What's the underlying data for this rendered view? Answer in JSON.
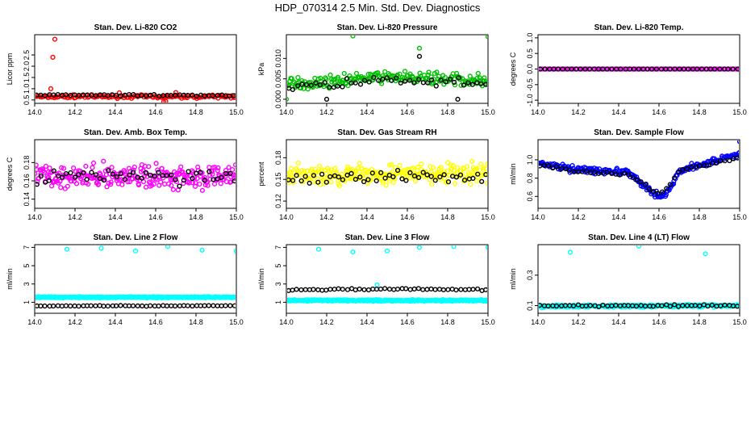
{
  "figure_title": "HDP_070314  2.5 Min. Std. Dev. Diagnostics",
  "chart_data": [
    {
      "type": "scatter",
      "title": "Stan. Dev. Li-820 CO2",
      "ylabel": "Licor ppm",
      "xlim": [
        14.0,
        15.0
      ],
      "ylim": [
        0.35,
        3.4
      ],
      "x_ticks": [
        "14.0",
        "14.2",
        "14.4",
        "14.6",
        "14.8",
        "15.0"
      ],
      "y_ticks": [
        {
          "v": 0.5,
          "label": "0.5"
        },
        {
          "v": 1.0,
          "label": "1.0"
        },
        {
          "v": 1.5,
          "label": "1.5"
        },
        {
          "v": 2.0,
          "label": "2.0"
        },
        {
          "v": 2.5,
          "label": "2.5"
        }
      ],
      "series": [
        {
          "color": "#ff0000",
          "base": [
            [
              14.0,
              0.65
            ],
            [
              15.0,
              0.65
            ]
          ],
          "noise": 0.1,
          "n": 130,
          "extra": [
            [
              14.1,
              3.2
            ],
            [
              14.09,
              2.4
            ],
            [
              14.08,
              1.0
            ],
            [
              14.42,
              0.82
            ],
            [
              14.7,
              0.83
            ],
            [
              14.64,
              0.42
            ],
            [
              14.65,
              0.44
            ]
          ]
        },
        {
          "color": "#000000",
          "base": [
            [
              14.0,
              0.72
            ],
            [
              15.0,
              0.7
            ]
          ],
          "noise": 0.05,
          "n": 48,
          "extra": []
        }
      ]
    },
    {
      "type": "scatter",
      "title": "Stan. Dev. Li-820 Pressure",
      "ylabel": "kPa",
      "xlim": [
        14.0,
        15.0
      ],
      "ylim": [
        -0.001,
        0.0158
      ],
      "x_ticks": [
        "14.0",
        "14.2",
        "14.4",
        "14.6",
        "14.8",
        "15.0"
      ],
      "y_ticks": [
        {
          "v": 0.0,
          "label": "0.000"
        },
        {
          "v": 0.005,
          "label": "0.005"
        },
        {
          "v": 0.01,
          "label": "0.010"
        }
      ],
      "series": [
        {
          "color": "#00c000",
          "base": [
            [
              14.0,
              0.0035
            ],
            [
              14.5,
              0.0055
            ],
            [
              15.0,
              0.0045
            ]
          ],
          "noise": 0.002,
          "n": 200,
          "extra": [
            [
              14.33,
              0.0155
            ],
            [
              15.0,
              0.0153
            ],
            [
              14.66,
              0.0125
            ],
            [
              14.0,
              0.0
            ]
          ]
        },
        {
          "color": "#000000",
          "base": [
            [
              14.0,
              0.003
            ],
            [
              14.5,
              0.0045
            ],
            [
              15.0,
              0.0035
            ]
          ],
          "noise": 0.0018,
          "n": 45,
          "extra": [
            [
              14.66,
              0.0105
            ],
            [
              14.2,
              0.0
            ],
            [
              14.85,
              0.0
            ]
          ]
        }
      ]
    },
    {
      "type": "scatter",
      "title": "Stan. Dev. Li-820 Temp.",
      "ylabel": "degrees C",
      "xlim": [
        14.0,
        15.0
      ],
      "ylim": [
        -1.1,
        1.1
      ],
      "x_ticks": [
        "14.0",
        "14.2",
        "14.4",
        "14.6",
        "14.8",
        "15.0"
      ],
      "y_ticks": [
        {
          "v": -1.0,
          "label": "-1.0"
        },
        {
          "v": -0.5,
          "label": "-0.5"
        },
        {
          "v": 0.0,
          "label": "0.0"
        },
        {
          "v": 0.5,
          "label": "0.5"
        },
        {
          "v": 1.0,
          "label": "1.0"
        }
      ],
      "series": [
        {
          "color": "#ff00ff",
          "base": [
            [
              14.0,
              0.0
            ],
            [
              15.0,
              0.0
            ]
          ],
          "noise": 0.0,
          "n": 120,
          "extra": []
        },
        {
          "color": "#000000",
          "base": [
            [
              14.0,
              0.0
            ],
            [
              15.0,
              0.0
            ]
          ],
          "noise": 0.0,
          "n": 45,
          "extra": []
        }
      ]
    },
    {
      "type": "scatter",
      "title": "Stan. Dev. Amb. Box Temp.",
      "ylabel": "degrees C",
      "xlim": [
        14.0,
        15.0
      ],
      "ylim": [
        0.13,
        0.205
      ],
      "x_ticks": [
        "14.0",
        "14.2",
        "14.4",
        "14.6",
        "14.8",
        "15.0"
      ],
      "y_ticks": [
        {
          "v": 0.14,
          "label": "0.14"
        },
        {
          "v": 0.16,
          "label": "0.16"
        },
        {
          "v": 0.18,
          "label": "0.18"
        }
      ],
      "series": [
        {
          "color": "#ff00ff",
          "base": [
            [
              14.0,
              0.165
            ],
            [
              15.0,
              0.165
            ]
          ],
          "noise": 0.018,
          "n": 260,
          "extra": []
        },
        {
          "color": "#000000",
          "base": [
            [
              14.0,
              0.165
            ],
            [
              15.0,
              0.165
            ]
          ],
          "noise": 0.013,
          "n": 48,
          "extra": []
        }
      ]
    },
    {
      "type": "scatter",
      "title": "Stan. Dev. Gas Stream RH",
      "ylabel": "percent",
      "xlim": [
        14.0,
        15.0
      ],
      "ylim": [
        0.11,
        0.205
      ],
      "x_ticks": [
        "14.0",
        "14.2",
        "14.4",
        "14.6",
        "14.8",
        "15.0"
      ],
      "y_ticks": [
        {
          "v": 0.12,
          "label": "0.12"
        },
        {
          "v": 0.15,
          "label": "0.15"
        },
        {
          "v": 0.18,
          "label": "0.18"
        }
      ],
      "series": [
        {
          "color": "#ffff00",
          "base": [
            [
              14.0,
              0.155
            ],
            [
              15.0,
              0.158
            ]
          ],
          "noise": 0.02,
          "n": 260,
          "extra": []
        },
        {
          "color": "#000000",
          "base": [
            [
              14.0,
              0.152
            ],
            [
              15.0,
              0.155
            ]
          ],
          "noise": 0.012,
          "n": 48,
          "extra": []
        }
      ]
    },
    {
      "type": "scatter",
      "title": "Stan. Dev. Sample Flow",
      "ylabel": "ml/min",
      "xlim": [
        14.0,
        15.0
      ],
      "ylim": [
        0.47,
        1.22
      ],
      "x_ticks": [
        "14.0",
        "14.2",
        "14.4",
        "14.6",
        "14.8",
        "15.0"
      ],
      "y_ticks": [
        {
          "v": 0.6,
          "label": "0.6"
        },
        {
          "v": 0.8,
          "label": "0.8"
        },
        {
          "v": 1.0,
          "label": "1.0"
        }
      ],
      "series": [
        {
          "color": "#0000ff",
          "base": [
            [
              14.0,
              0.97
            ],
            [
              14.1,
              0.92
            ],
            [
              14.3,
              0.88
            ],
            [
              14.45,
              0.86
            ],
            [
              14.52,
              0.72
            ],
            [
              14.58,
              0.62
            ],
            [
              14.62,
              0.6
            ],
            [
              14.66,
              0.7
            ],
            [
              14.7,
              0.88
            ],
            [
              14.8,
              0.95
            ],
            [
              14.9,
              1.0
            ],
            [
              15.0,
              1.07
            ]
          ],
          "noise": 0.05,
          "n": 220,
          "extra": [
            [
              15.0,
              1.2
            ]
          ]
        },
        {
          "color": "#000000",
          "base": [
            [
              14.0,
              0.95
            ],
            [
              14.2,
              0.87
            ],
            [
              14.45,
              0.84
            ],
            [
              14.55,
              0.7
            ],
            [
              14.6,
              0.62
            ],
            [
              14.65,
              0.72
            ],
            [
              14.7,
              0.88
            ],
            [
              15.0,
              1.03
            ]
          ],
          "noise": 0.025,
          "n": 48,
          "extra": []
        }
      ]
    },
    {
      "type": "scatter",
      "title": "Stan. Dev. Line 2 Flow",
      "ylabel": "ml/min",
      "xlim": [
        14.0,
        15.0
      ],
      "ylim": [
        -0.2,
        7.3
      ],
      "x_ticks": [
        "14.0",
        "14.2",
        "14.4",
        "14.6",
        "14.8",
        "15.0"
      ],
      "y_ticks": [
        {
          "v": 1,
          "label": "1"
        },
        {
          "v": 3,
          "label": "3"
        },
        {
          "v": 5,
          "label": "5"
        },
        {
          "v": 7,
          "label": "7"
        }
      ],
      "series": [
        {
          "color": "#00ffff",
          "base": [
            [
              14.0,
              1.55
            ],
            [
              15.0,
              1.55
            ]
          ],
          "noise": 0.1,
          "n": 300,
          "extra": [
            [
              14.16,
              6.8
            ],
            [
              14.33,
              6.9
            ],
            [
              14.5,
              6.6
            ],
            [
              14.66,
              7.1
            ],
            [
              14.83,
              6.7
            ],
            [
              15.0,
              6.6
            ]
          ]
        },
        {
          "color": "#000000",
          "base": [
            [
              14.0,
              0.6
            ],
            [
              15.0,
              0.62
            ]
          ],
          "noise": 0.05,
          "n": 48,
          "extra": []
        }
      ]
    },
    {
      "type": "scatter",
      "title": "Stan. Dev. Line 3 Flow",
      "ylabel": "ml/min",
      "xlim": [
        14.0,
        15.0
      ],
      "ylim": [
        -0.2,
        7.3
      ],
      "x_ticks": [
        "14.0",
        "14.2",
        "14.4",
        "14.6",
        "14.8",
        "15.0"
      ],
      "y_ticks": [
        {
          "v": 1,
          "label": "1"
        },
        {
          "v": 3,
          "label": "3"
        },
        {
          "v": 5,
          "label": "5"
        },
        {
          "v": 7,
          "label": "7"
        }
      ],
      "series": [
        {
          "color": "#00ffff",
          "base": [
            [
              14.0,
              1.2
            ],
            [
              15.0,
              1.2
            ]
          ],
          "noise": 0.12,
          "n": 320,
          "extra": [
            [
              14.16,
              6.8
            ],
            [
              14.33,
              6.5
            ],
            [
              14.5,
              6.6
            ],
            [
              14.66,
              7.0
            ],
            [
              14.83,
              7.1
            ],
            [
              15.0,
              7.0
            ],
            [
              14.45,
              2.9
            ]
          ]
        },
        {
          "color": "#000000",
          "base": [
            [
              14.0,
              2.35
            ],
            [
              14.5,
              2.45
            ],
            [
              15.0,
              2.35
            ]
          ],
          "noise": 0.12,
          "n": 48,
          "extra": []
        }
      ]
    },
    {
      "type": "scatter",
      "title": "Stan. Dev. Line 4 (LT) Flow",
      "ylabel": "ml/min",
      "xlim": [
        14.0,
        15.0
      ],
      "ylim": [
        0.05,
        0.5
      ],
      "x_ticks": [
        "14.0",
        "14.2",
        "14.4",
        "14.6",
        "14.8",
        "15.0"
      ],
      "y_ticks": [
        {
          "v": 0.1,
          "label": "0.1"
        },
        {
          "v": 0.3,
          "label": "0.3"
        }
      ],
      "series": [
        {
          "color": "#00ffff",
          "base": [
            [
              14.0,
              0.095
            ],
            [
              15.0,
              0.1
            ]
          ],
          "noise": 0.012,
          "n": 300,
          "extra": [
            [
              14.16,
              0.45
            ],
            [
              14.5,
              0.49
            ],
            [
              14.83,
              0.44
            ]
          ]
        },
        {
          "color": "#000000",
          "base": [
            [
              14.0,
              0.1
            ],
            [
              15.0,
              0.1
            ]
          ],
          "noise": 0.008,
          "n": 48,
          "extra": []
        }
      ]
    }
  ]
}
